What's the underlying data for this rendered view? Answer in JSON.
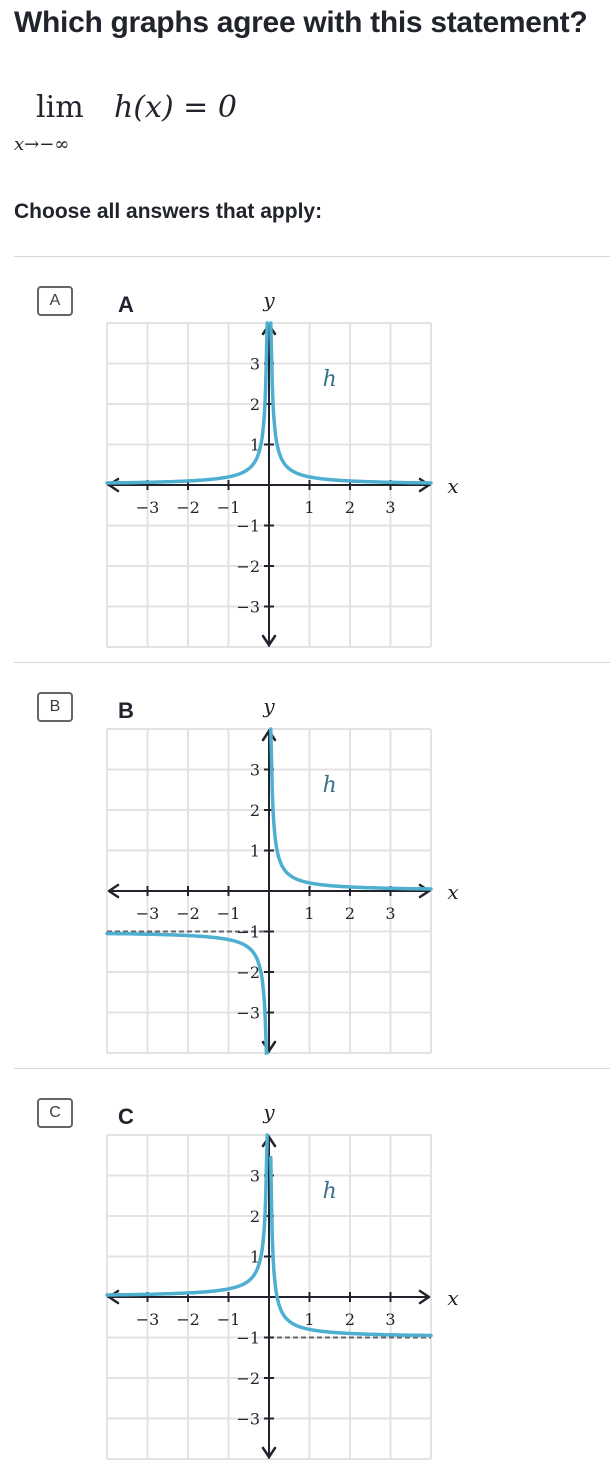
{
  "question": "Which graphs agree with this statement?",
  "expression": {
    "lim": "lim",
    "subscript": "x→−∞",
    "function": "h(x) = 0"
  },
  "instruction": "Choose all answers that apply:",
  "choices": [
    {
      "letter": "A",
      "label": "A",
      "chart_data": {
        "type": "line",
        "xlabel": "x",
        "ylabel": "y",
        "xlim": [
          -4,
          4
        ],
        "ylim": [
          -4,
          4
        ],
        "grid": true,
        "x_ticks": [
          "−3",
          "−2",
          "−1",
          "1",
          "2",
          "3"
        ],
        "y_ticks": [
          "3",
          "2",
          "1",
          "−1",
          "−2",
          "−3"
        ],
        "asymptotes": {
          "vertical": 0,
          "horizontal_left": 0,
          "horizontal_right": 0
        },
        "series": [
          {
            "name": "h",
            "left_branch": "-0.2/x",
            "right_branch": "0.2/x"
          }
        ]
      }
    },
    {
      "letter": "B",
      "label": "B",
      "chart_data": {
        "type": "line",
        "xlabel": "x",
        "ylabel": "y",
        "xlim": [
          -4,
          4
        ],
        "ylim": [
          -4,
          4
        ],
        "grid": true,
        "x_ticks": [
          "−3",
          "−2",
          "−1",
          "1",
          "2",
          "3"
        ],
        "y_ticks": [
          "3",
          "2",
          "1",
          "−1",
          "−2",
          "−3"
        ],
        "asymptotes": {
          "vertical": 0,
          "horizontal_left": -1,
          "horizontal_right": 0
        },
        "series": [
          {
            "name": "h",
            "left_branch": "-1+0.2/x",
            "right_branch": "0.2/x"
          }
        ]
      }
    },
    {
      "letter": "C",
      "label": "C",
      "chart_data": {
        "type": "line",
        "xlabel": "x",
        "ylabel": "y",
        "xlim": [
          -4,
          4
        ],
        "ylim": [
          -4,
          4
        ],
        "grid": true,
        "x_ticks": [
          "−3",
          "−2",
          "−1",
          "1",
          "2",
          "3"
        ],
        "y_ticks": [
          "3",
          "2",
          "1",
          "−1",
          "−2",
          "−3"
        ],
        "asymptotes": {
          "vertical": 0,
          "horizontal_left": 0,
          "horizontal_right": -1
        },
        "series": [
          {
            "name": "h",
            "left_branch": "-0.2/x",
            "right_branch": "-1+0.2/x"
          }
        ]
      }
    }
  ],
  "colors": {
    "curve": "#4fafd1",
    "grid": "#e3e3e3",
    "axis": "#21242c",
    "dash": "#626569",
    "curve_label": "#3b6f8a"
  }
}
